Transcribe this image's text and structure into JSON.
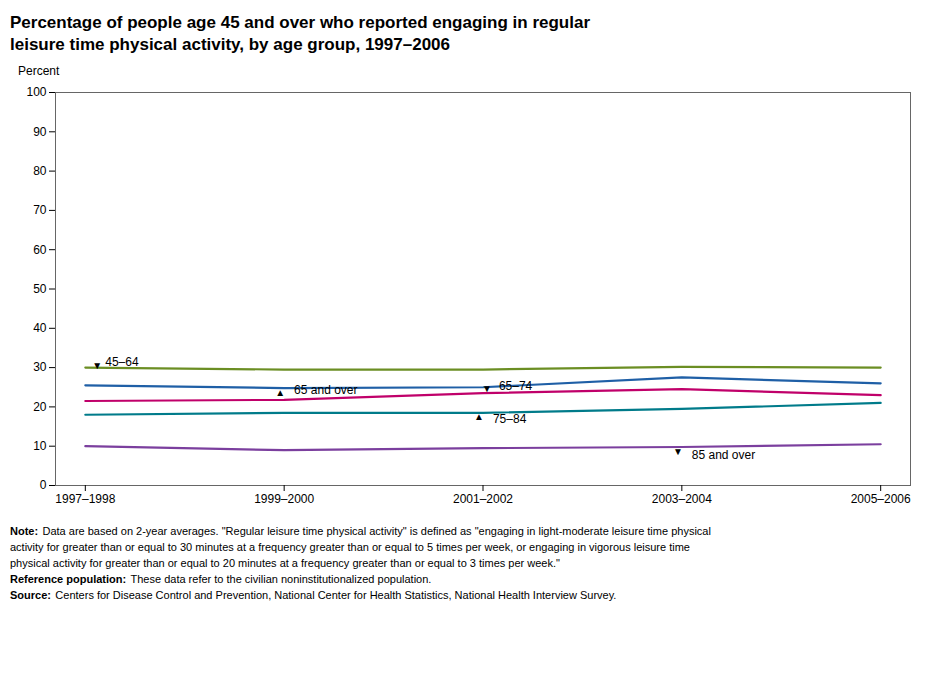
{
  "chart_data": {
    "type": "line",
    "title": "Percentage of people age 45 and over who reported engaging in regular\nleisure time physical activity, by age group, 1997–2006",
    "ylabel": "Percent",
    "x": [
      0,
      1,
      2,
      3,
      4
    ],
    "xlim": [
      -0.15,
      4.15
    ],
    "xticks": [
      {
        "value": 0,
        "label": "1997–1998"
      },
      {
        "value": 1,
        "label": "1999–2000"
      },
      {
        "value": 2,
        "label": "2001–2002"
      },
      {
        "value": 3,
        "label": "2003–2004"
      },
      {
        "value": 4,
        "label": "2005–2006"
      }
    ],
    "ylim": [
      0,
      100
    ],
    "yticks": [
      0,
      10,
      20,
      30,
      40,
      50,
      60,
      70,
      80,
      90,
      100
    ],
    "series": [
      {
        "name": "45–64",
        "color": "#6b8e23",
        "values": [
          30.0,
          29.5,
          29.5,
          30.2,
          30.0
        ]
      },
      {
        "name": "65 and over",
        "color": "#1f5fa6",
        "values": [
          25.5,
          24.8,
          25.0,
          27.5,
          26.0
        ]
      },
      {
        "name": "65–74",
        "color": "#c0006a",
        "values": [
          21.5,
          21.8,
          23.5,
          24.5,
          23.0
        ]
      },
      {
        "name": "75–84",
        "color": "#007b8a",
        "values": [
          18.0,
          18.5,
          18.5,
          19.5,
          21.0
        ]
      },
      {
        "name": "85 and over",
        "color": "#7b3f9e",
        "values": [
          10.0,
          9.0,
          9.5,
          9.8,
          10.5
        ]
      }
    ],
    "annotations": [
      {
        "text": "45–64",
        "x": 0.1,
        "y": 31.5
      },
      {
        "text": "65 and over",
        "x": 1.05,
        "y": 24.2
      },
      {
        "text": "65–74",
        "x": 2.08,
        "y": 25.2
      },
      {
        "text": "75–84",
        "x": 2.05,
        "y": 16.8
      },
      {
        "text": "85 and over",
        "x": 3.05,
        "y": 7.8
      }
    ],
    "symbol_annotations": [
      {
        "text": "▼",
        "x": 0.06,
        "y": 30.5
      },
      {
        "text": "▲",
        "x": 0.98,
        "y": 23.5
      },
      {
        "text": "▼",
        "x": 2.02,
        "y": 24.5
      },
      {
        "text": "▲",
        "x": 1.98,
        "y": 17.5
      },
      {
        "text": "▼",
        "x": 2.98,
        "y": 8.5
      }
    ],
    "notes": [
      {
        "bold": "Note:",
        "text": "Data are based on 2-year averages. \"Regular leisure time physical activity\" is defined as \"engaging in light-moderate leisure time physical"
      },
      {
        "text": "activity for greater than or equal to 30 minutes at a frequency greater than or equal to 5 times per week, or engaging in vigorous leisure time"
      },
      {
        "text": "physical activity for greater than or equal to 20 minutes at a frequency greater than or equal to 3 times per week.\""
      },
      {
        "bold": "Reference population:",
        "text": "These data refer to the civilian noninstitutionalized population."
      },
      {
        "bold": "Source:",
        "text": "Centers for Disease Control and Prevention, National Center for Health Statistics, National Health Interview Survey."
      }
    ]
  }
}
